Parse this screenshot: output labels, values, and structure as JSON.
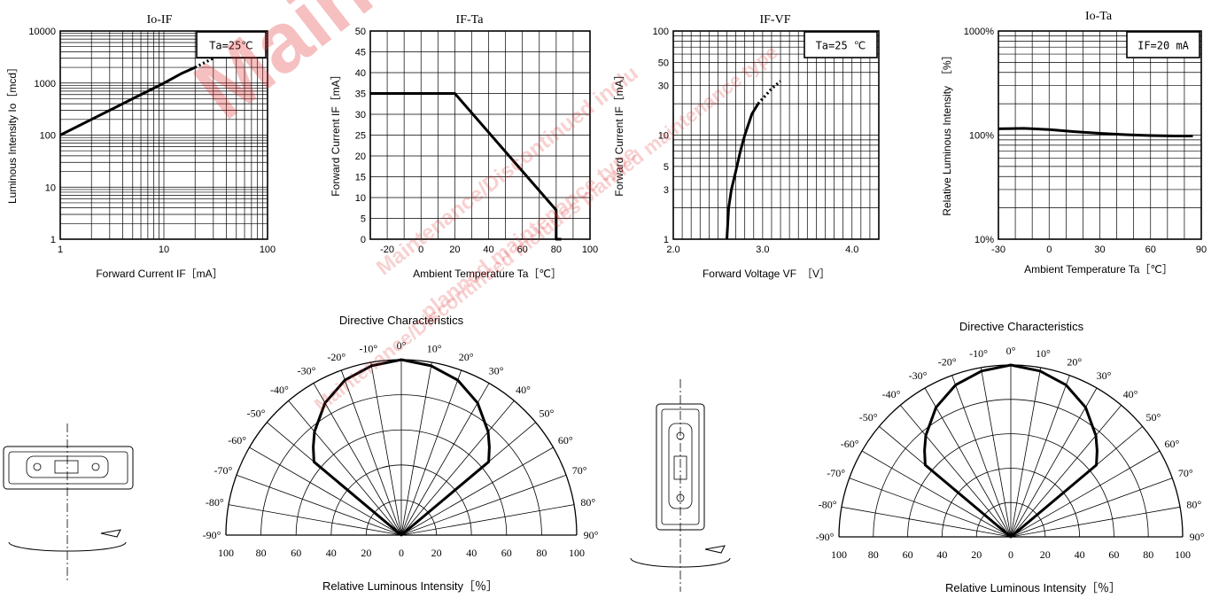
{
  "chart_data": [
    {
      "type": "line",
      "title": "Io-IF",
      "annotation": "Ta=25℃",
      "xlabel": "Forward Current IF［mA］",
      "ylabel": "Luminous Intensity  Io［mcd］",
      "x_scale": "log",
      "y_scale": "log",
      "xlim": [
        1,
        100
      ],
      "ylim": [
        1,
        10000
      ],
      "x_ticks": [
        "1",
        "10",
        "100"
      ],
      "y_ticks": [
        "1",
        "10",
        "100",
        "1000",
        "10000"
      ],
      "grid": true,
      "series": [
        {
          "style": "solid",
          "x": [
            1,
            2,
            3,
            5,
            7,
            10,
            15,
            20
          ],
          "y": [
            100,
            200,
            300,
            500,
            700,
            1000,
            1550,
            2000
          ]
        },
        {
          "style": "dotted",
          "x": [
            20,
            30
          ],
          "y": [
            2000,
            3000
          ]
        }
      ]
    },
    {
      "type": "line",
      "title": "IF-Ta",
      "xlabel": "Ambient Temperature Ta［℃］",
      "ylabel": "Forward Current  IF［mA］",
      "xlim": [
        -30,
        100
      ],
      "ylim": [
        0,
        50
      ],
      "x_ticks": [
        "-20",
        "0",
        "20",
        "40",
        "60",
        "80",
        "100"
      ],
      "y_ticks": [
        "0",
        "5",
        "10",
        "15",
        "20",
        "25",
        "30",
        "35",
        "40",
        "45",
        "50"
      ],
      "grid": true,
      "series": [
        {
          "style": "solid",
          "x": [
            -30,
            20,
            80,
            80,
            83
          ],
          "y": [
            35,
            35,
            7,
            0,
            0
          ]
        }
      ]
    },
    {
      "type": "line",
      "title": "IF-VF",
      "annotation": "Ta=25 ℃",
      "xlabel": "Forward Voltage VF　［V］",
      "ylabel": "Forward Current  IF［mA］",
      "y_scale": "log",
      "xlim": [
        2.0,
        4.3
      ],
      "ylim": [
        1,
        100
      ],
      "x_ticks": [
        "2.0",
        "3.0",
        "4.0"
      ],
      "y_ticks": [
        "1",
        "3",
        "5",
        "10",
        "30",
        "50",
        "100"
      ],
      "grid": true,
      "series": [
        {
          "style": "solid",
          "x": [
            2.6,
            2.62,
            2.65,
            2.7,
            2.75,
            2.8,
            2.88,
            2.95
          ],
          "y": [
            1,
            2,
            3,
            4.5,
            7,
            10,
            16,
            20
          ]
        },
        {
          "style": "dotted",
          "x": [
            2.95,
            3.1,
            3.2
          ],
          "y": [
            20,
            28,
            33
          ]
        }
      ]
    },
    {
      "type": "line",
      "title": "Io-Ta",
      "annotation": "IF=20 mA",
      "xlabel": "Ambient Temperature Ta［℃］",
      "ylabel": "Relative Luminous Intensity　［%］",
      "y_scale": "log",
      "xlim": [
        -30,
        90
      ],
      "ylim": [
        10,
        1000
      ],
      "x_ticks": [
        "-30",
        "0",
        "30",
        "60",
        "90"
      ],
      "y_ticks": [
        "10%",
        "100%",
        "1000%"
      ],
      "grid": true,
      "series": [
        {
          "style": "solid",
          "x": [
            -30,
            -15,
            0,
            15,
            30,
            45,
            60,
            75,
            85
          ],
          "y": [
            115,
            116,
            113,
            108,
            104,
            101,
            99,
            98,
            98
          ]
        }
      ]
    },
    {
      "type": "polar",
      "title": "Directive Characteristics",
      "xlabel": "Relative Luminous Intensity［％］",
      "angle_ticks": [
        "-90°",
        "-80°",
        "-70°",
        "-60°",
        "-50°",
        "-40°",
        "-30°",
        "-20°",
        "-10°",
        "0°",
        "10°",
        "20°",
        "30°",
        "40°",
        "50°",
        "60°",
        "70°",
        "80°",
        "90°"
      ],
      "radial_ticks": [
        "100",
        "80",
        "60",
        "40",
        "20",
        "0",
        "20",
        "40",
        "60",
        "80",
        "100"
      ],
      "series": [
        {
          "angles_deg": [
            -50,
            -45,
            -40,
            -30,
            -20,
            -10,
            0,
            10,
            20,
            30,
            40,
            45,
            50
          ],
          "values": [
            65,
            71,
            77,
            87,
            94,
            98,
            100,
            98,
            94,
            87,
            77,
            71,
            65
          ]
        }
      ]
    },
    {
      "type": "polar",
      "title": "Directive Characteristics",
      "xlabel": "Relative Luminous Intensity［％］",
      "angle_ticks": [
        "-90°",
        "-80°",
        "-70°",
        "-60°",
        "-50°",
        "-40°",
        "-30°",
        "-20°",
        "-10°",
        "0°",
        "10°",
        "20°",
        "30°",
        "40°",
        "50°",
        "60°",
        "70°",
        "80°",
        "90°"
      ],
      "radial_ticks": [
        "100",
        "80",
        "60",
        "40",
        "20",
        "0",
        "20",
        "40",
        "60",
        "80",
        "100"
      ],
      "series": [
        {
          "angles_deg": [
            -50,
            -45,
            -40,
            -30,
            -20,
            -10,
            0,
            10,
            20,
            30,
            40,
            45,
            50
          ],
          "values": [
            65,
            71,
            77,
            87,
            94,
            98,
            100,
            98,
            94,
            87,
            77,
            71,
            65
          ]
        }
      ]
    }
  ],
  "watermark": {
    "big": "Maint Disc",
    "line1": "Maintenance/Discontinued inclu",
    "line2": "planned maintenance type",
    "line3": "Maintenance/Discontinued includes planned maintenance type"
  }
}
